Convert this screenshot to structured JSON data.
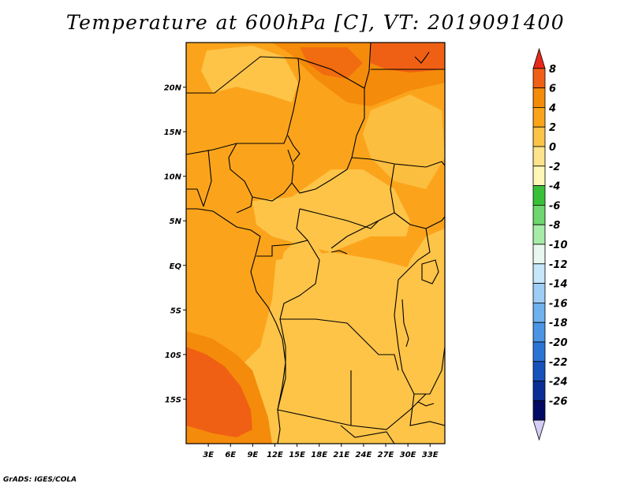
{
  "title": "Temperature at 600hPa [C], VT: 2019091400",
  "credit": "GrADS: IGES/COLA",
  "map": {
    "lon_range": [
      0,
      35
    ],
    "lat_range": [
      -20,
      25
    ],
    "lat_ticks": [
      {
        "value": 20,
        "label": "20N"
      },
      {
        "value": 15,
        "label": "15N"
      },
      {
        "value": 10,
        "label": "10N"
      },
      {
        "value": 5,
        "label": "5N"
      },
      {
        "value": 0,
        "label": "EQ"
      },
      {
        "value": -5,
        "label": "5S"
      },
      {
        "value": -10,
        "label": "10S"
      },
      {
        "value": -15,
        "label": "15S"
      }
    ],
    "lon_ticks": [
      {
        "value": 3,
        "label": "3E"
      },
      {
        "value": 6,
        "label": "6E"
      },
      {
        "value": 9,
        "label": "9E"
      },
      {
        "value": 12,
        "label": "12E"
      },
      {
        "value": 15,
        "label": "15E"
      },
      {
        "value": 18,
        "label": "18E"
      },
      {
        "value": 21,
        "label": "21E"
      },
      {
        "value": 24,
        "label": "24E"
      },
      {
        "value": 27,
        "label": "27E"
      },
      {
        "value": 30,
        "label": "30E"
      },
      {
        "value": 33,
        "label": "33E"
      }
    ]
  },
  "colorbar": {
    "levels": [
      "8",
      "6",
      "4",
      "2",
      "0",
      "-2",
      "-4",
      "-6",
      "-8",
      "-10",
      "-12",
      "-14",
      "-16",
      "-18",
      "-20",
      "-22",
      "-24",
      "-26"
    ],
    "colors": [
      "#e8281a",
      "#f06014",
      "#f58b0a",
      "#fba41b",
      "#fdc448",
      "#fde38b",
      "#fef7b8",
      "#38c038",
      "#6ed66e",
      "#a6eca6",
      "#e8f8f0",
      "#c6e6fa",
      "#9ecef6",
      "#6eb2ee",
      "#4a95e4",
      "#2a74d6",
      "#1652bc",
      "#0a2e96",
      "#000a64",
      "#d2cef5"
    ]
  }
}
